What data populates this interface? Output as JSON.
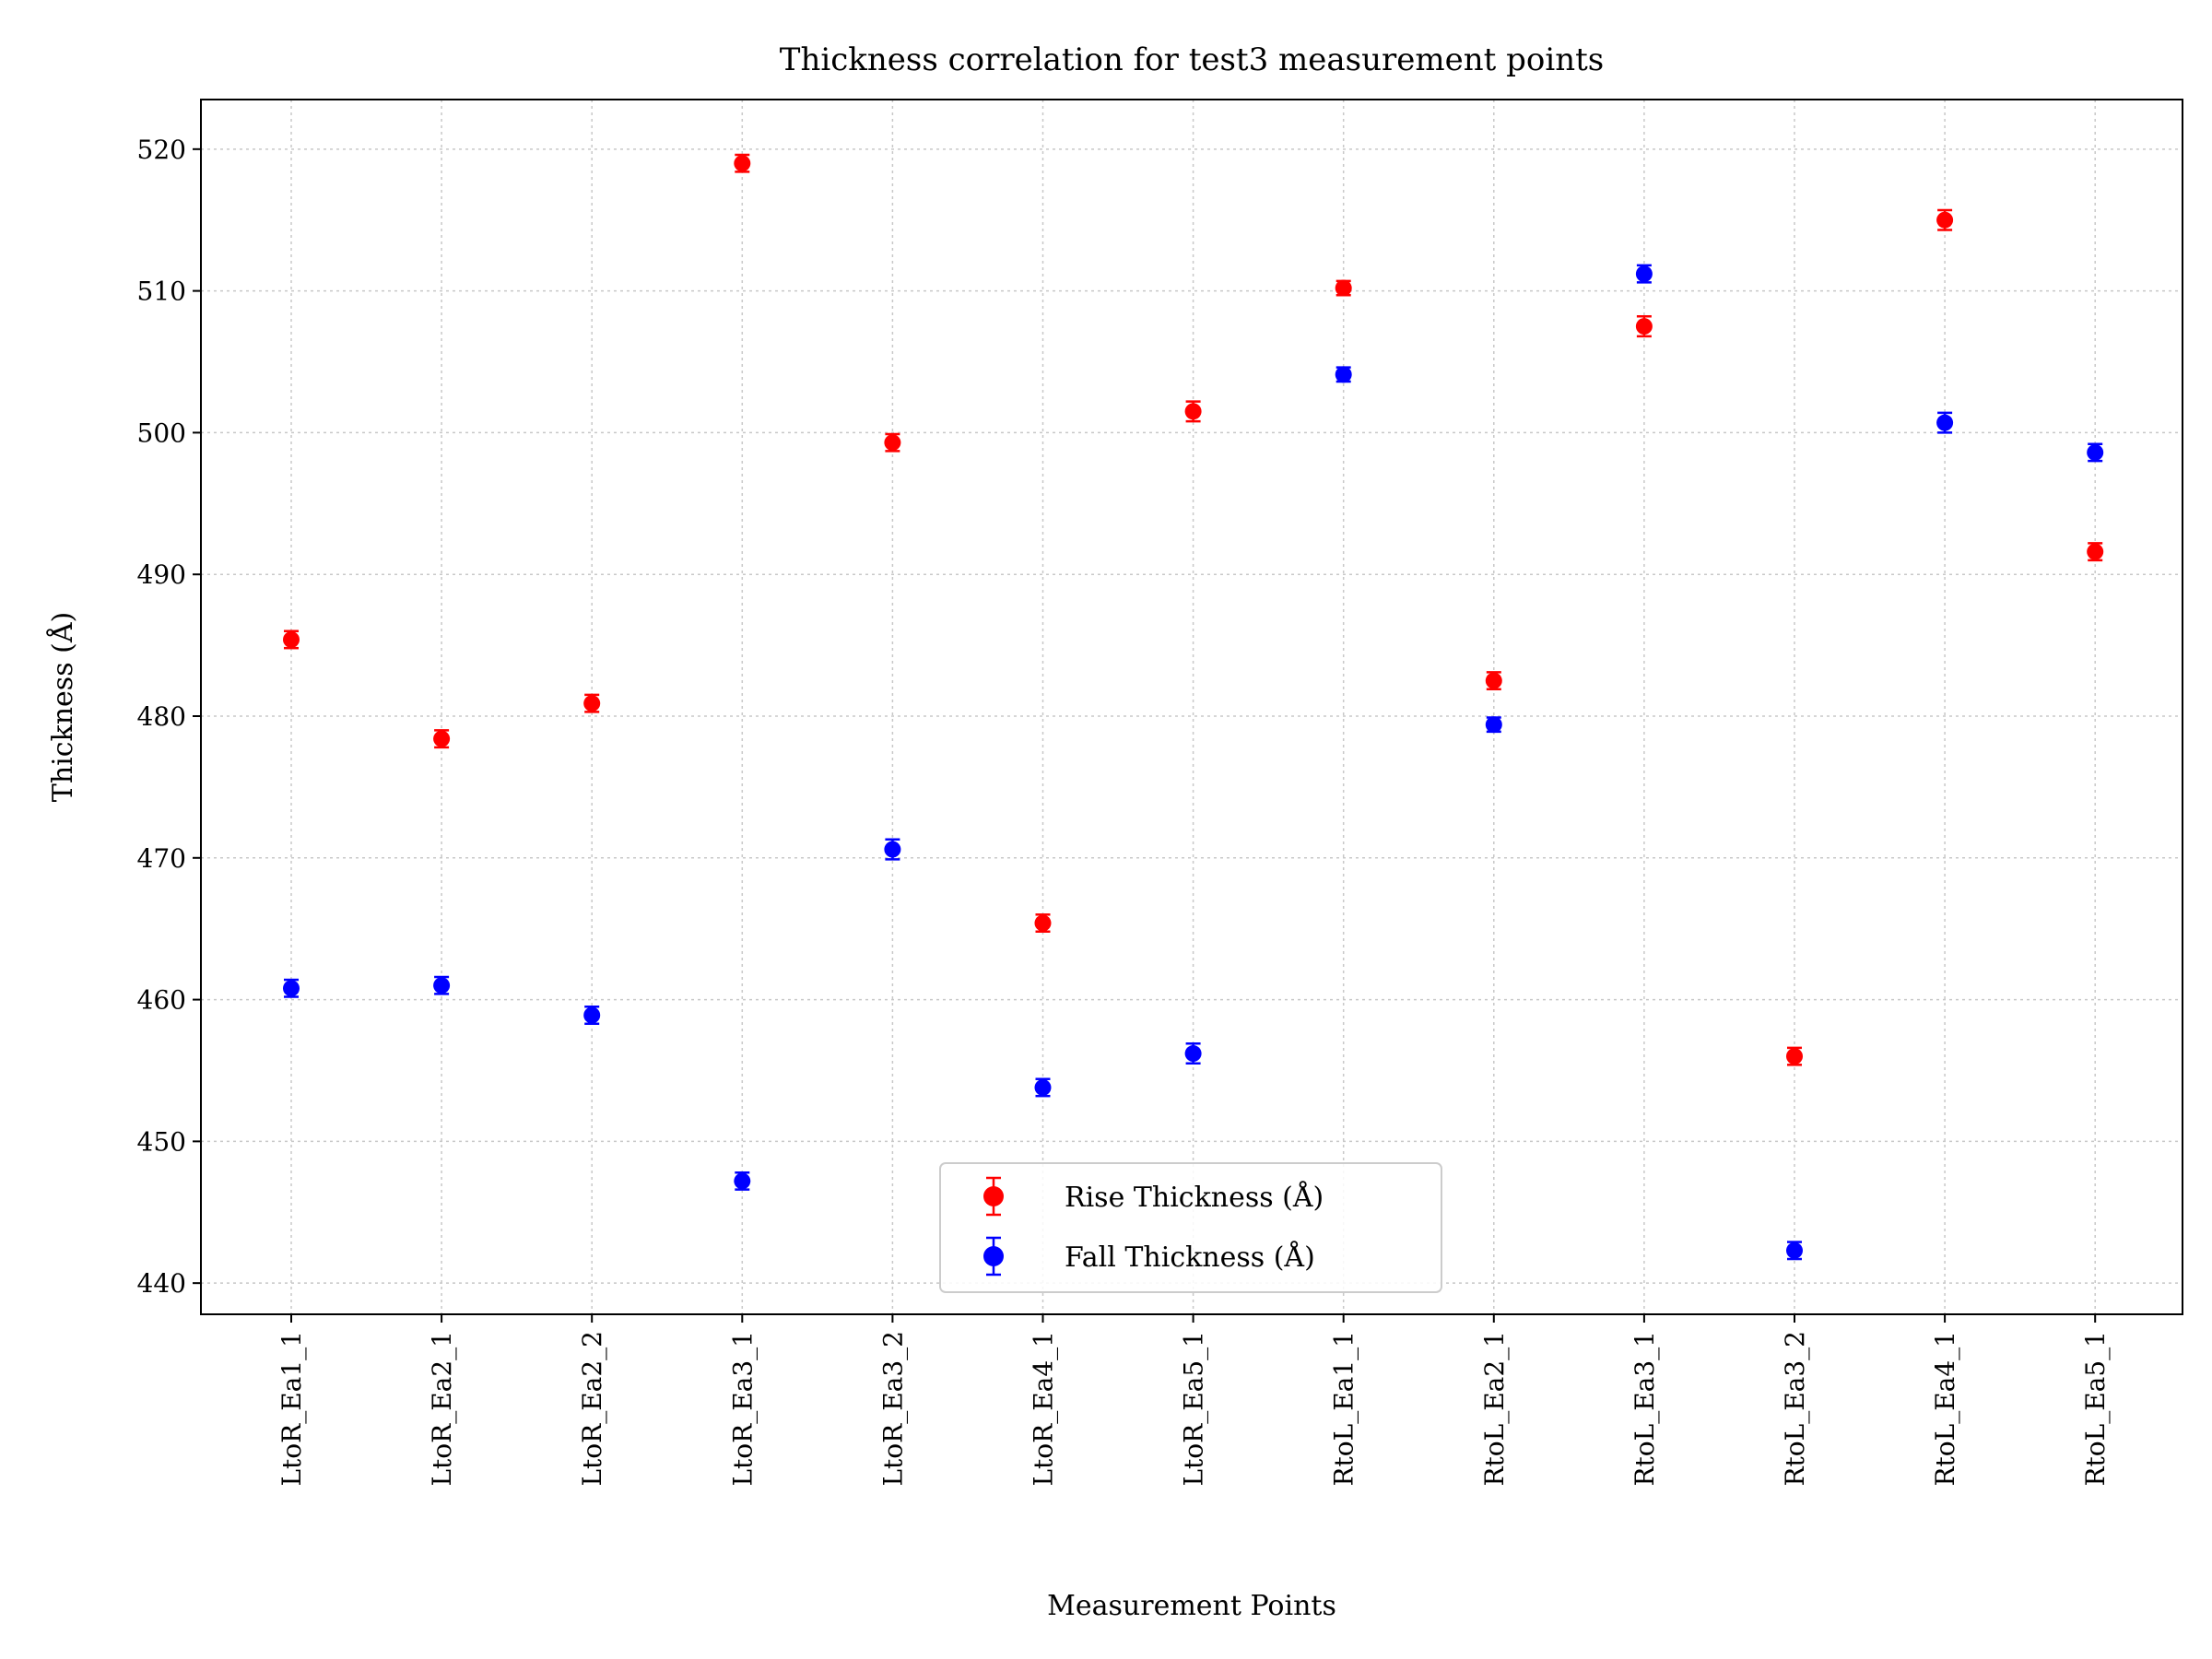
{
  "chart_data": {
    "type": "scatter",
    "title": "Thickness correlation for test3 measurement points",
    "xlabel": "Measurement Points",
    "ylabel": "Thickness (Å)",
    "categories": [
      "LtoR_Ea1_1",
      "LtoR_Ea2_1",
      "LtoR_Ea2_2",
      "LtoR_Ea3_1",
      "LtoR_Ea3_2",
      "LtoR_Ea4_1",
      "LtoR_Ea5_1",
      "RtoL_Ea1_1",
      "RtoL_Ea2_1",
      "RtoL_Ea3_1",
      "RtoL_Ea3_2",
      "RtoL_Ea4_1",
      "RtoL_Ea5_1"
    ],
    "ylim": [
      437.8,
      523.5
    ],
    "yticks": [
      440,
      450,
      460,
      470,
      480,
      490,
      500,
      510,
      520
    ],
    "grid": true,
    "legend_position": "bottom-center",
    "series": [
      {
        "name": "Rise Thickness (Å)",
        "color": "#ff0000",
        "values": [
          485.4,
          478.4,
          480.9,
          519.0,
          499.3,
          465.4,
          501.5,
          510.2,
          482.5,
          507.5,
          456.0,
          515.0,
          491.6
        ],
        "errors": [
          0.6,
          0.6,
          0.6,
          0.6,
          0.6,
          0.6,
          0.7,
          0.5,
          0.6,
          0.7,
          0.6,
          0.7,
          0.6
        ]
      },
      {
        "name": "Fall Thickness (Å)",
        "color": "#0000ff",
        "values": [
          460.8,
          461.0,
          458.9,
          447.2,
          470.6,
          453.8,
          456.2,
          504.1,
          479.4,
          511.2,
          442.3,
          500.7,
          498.6
        ],
        "errors": [
          0.6,
          0.6,
          0.6,
          0.6,
          0.7,
          0.6,
          0.7,
          0.5,
          0.5,
          0.6,
          0.6,
          0.7,
          0.6
        ]
      }
    ]
  }
}
